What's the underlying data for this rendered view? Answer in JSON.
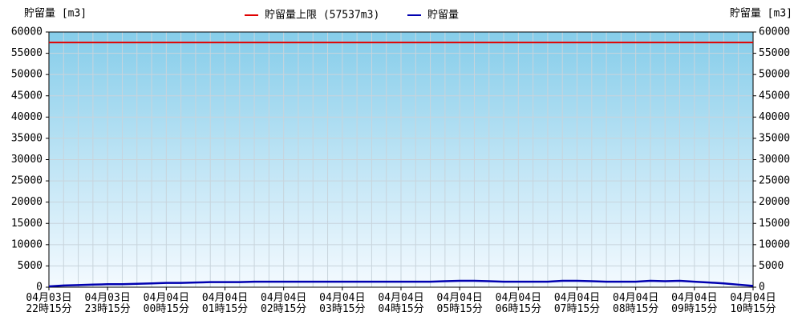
{
  "chart_data": {
    "type": "line",
    "ylabel": "貯留量 [m3]",
    "y2label": "貯留量 [m3]",
    "categories": [
      "04月03日\n22時15分",
      null,
      null,
      null,
      "04月03日\n23時15分",
      null,
      null,
      null,
      "04月04日\n00時15分",
      null,
      null,
      null,
      "04月04日\n01時15分",
      null,
      null,
      null,
      "04月04日\n02時15分",
      null,
      null,
      null,
      "04月04日\n03時15分",
      null,
      null,
      null,
      "04月04日\n04時15分",
      null,
      null,
      null,
      "04月04日\n05時15分",
      null,
      null,
      null,
      "04月04日\n06時15分",
      null,
      null,
      null,
      "04月04日\n07時15分",
      null,
      null,
      null,
      "04月04日\n08時15分",
      null,
      null,
      null,
      "04月04日\n09時15分",
      null,
      null,
      null,
      "04月04日\n10時15分"
    ],
    "series": [
      {
        "name": "貯留量",
        "color": "#0000b0",
        "values": [
          200,
          400,
          500,
          600,
          700,
          700,
          800,
          900,
          1000,
          1000,
          1100,
          1200,
          1200,
          1200,
          1300,
          1300,
          1300,
          1300,
          1300,
          1300,
          1300,
          1300,
          1300,
          1300,
          1300,
          1300,
          1300,
          1400,
          1500,
          1500,
          1400,
          1300,
          1300,
          1300,
          1300,
          1500,
          1500,
          1400,
          1300,
          1300,
          1300,
          1500,
          1400,
          1500,
          1300,
          1100,
          900,
          600,
          300
        ]
      }
    ],
    "limit": {
      "name": "貯留量上限 (57537m3)",
      "value": 57537,
      "color": "#e00000"
    },
    "ylim": [
      0,
      60000
    ],
    "yticks": [
      0,
      5000,
      10000,
      15000,
      20000,
      25000,
      30000,
      35000,
      40000,
      45000,
      50000,
      55000,
      60000
    ],
    "y2lim": [
      0,
      60000
    ],
    "y2ticks": [
      0,
      5000,
      10000,
      15000,
      20000,
      25000,
      30000,
      35000,
      40000,
      45000,
      50000,
      55000,
      60000
    ],
    "grid": true,
    "legend": "top"
  }
}
